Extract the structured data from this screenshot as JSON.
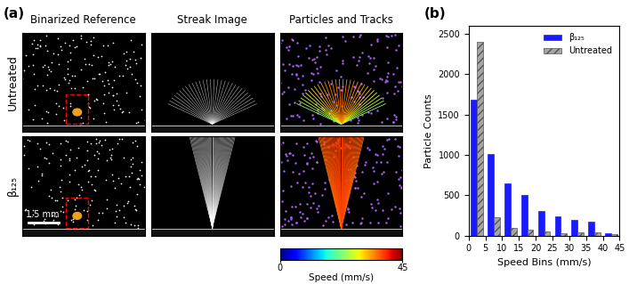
{
  "panel_a": {
    "label": "(a)",
    "columns": [
      "Binarized Reference",
      "Streak Image",
      "Particles and Tracks"
    ],
    "rows": [
      "Untreated",
      "β₁₂₅"
    ],
    "scale_bar": "1.5 mm",
    "colorbar": {
      "label": "Speed (mm/s)",
      "range": [
        0,
        45
      ],
      "ticks": [
        0,
        45
      ]
    }
  },
  "chart_data": {
    "type": "bar",
    "annotation": "(b)",
    "x": [
      2.5,
      7.5,
      12.5,
      17.5,
      22.5,
      27.5,
      32.5,
      37.5,
      42.5
    ],
    "series": [
      {
        "name": "β₁₂₅",
        "color": "#1a1aff",
        "values": [
          1680,
          1010,
          650,
          500,
          310,
          240,
          200,
          175,
          30
        ]
      },
      {
        "name": "Untreated",
        "color": "#a6a6a6",
        "values": [
          2400,
          230,
          95,
          70,
          50,
          35,
          40,
          45,
          15
        ]
      }
    ],
    "x_label": "Speed Bins (mm/s)",
    "y_label": "Particle Counts",
    "xlim": [
      0,
      45
    ],
    "ylim": [
      0,
      2600
    ],
    "xticks": [
      0,
      5,
      10,
      15,
      20,
      25,
      30,
      35,
      40,
      45
    ],
    "yticks": [
      0,
      500,
      1000,
      1500,
      2000,
      2500
    ],
    "legend": "upper right"
  }
}
